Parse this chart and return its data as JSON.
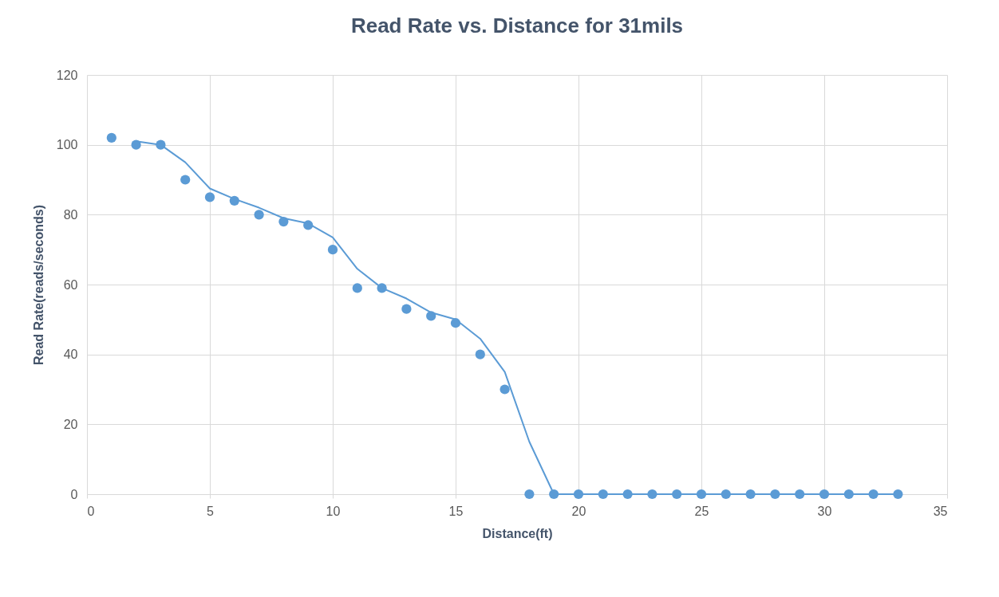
{
  "chart_data": {
    "type": "scatter",
    "title": "Read Rate vs. Distance for 31mils",
    "xlabel": "Distance(ft)",
    "ylabel": "Read Rate(reads/seconds)",
    "xlim": [
      0,
      35
    ],
    "xticks": [
      0,
      5,
      10,
      15,
      20,
      25,
      30,
      35
    ],
    "ylim": [
      0,
      120
    ],
    "yticks": [
      0,
      20,
      40,
      60,
      80,
      100,
      120
    ],
    "grid": true,
    "series": [
      {
        "marker": "circle",
        "color": "#5b9bd5",
        "x": [
          1,
          2,
          3,
          4,
          5,
          6,
          7,
          8,
          9,
          10,
          11,
          12,
          13,
          14,
          15,
          16,
          17,
          18,
          19,
          20,
          21,
          22,
          23,
          24,
          25,
          26,
          27,
          28,
          29,
          30,
          31,
          32,
          33
        ],
        "values": [
          102,
          100,
          100,
          90,
          85,
          84,
          80,
          78,
          77,
          70,
          59,
          59,
          53,
          51,
          49,
          40,
          30,
          0,
          0,
          0,
          0,
          0,
          0,
          0,
          0,
          0,
          0,
          0,
          0,
          0,
          0,
          0,
          0
        ]
      },
      {
        "type": "line",
        "marker": "none",
        "color": "#5b9bd5",
        "line_style": "solid",
        "x": [
          2,
          3,
          4,
          5,
          6,
          7,
          8,
          9,
          10,
          11,
          12,
          13,
          14,
          15,
          16,
          17,
          18,
          19,
          20,
          21,
          22,
          23,
          24,
          25,
          26,
          27,
          28,
          29,
          30,
          31,
          32,
          33
        ],
        "values": [
          101,
          100,
          95,
          87.5,
          84.5,
          82,
          79,
          77.5,
          73.5,
          64.5,
          59,
          56,
          52,
          50,
          44.5,
          35,
          15,
          0,
          0,
          0,
          0,
          0,
          0,
          0,
          0,
          0,
          0,
          0,
          0,
          0,
          0,
          0
        ]
      }
    ]
  }
}
